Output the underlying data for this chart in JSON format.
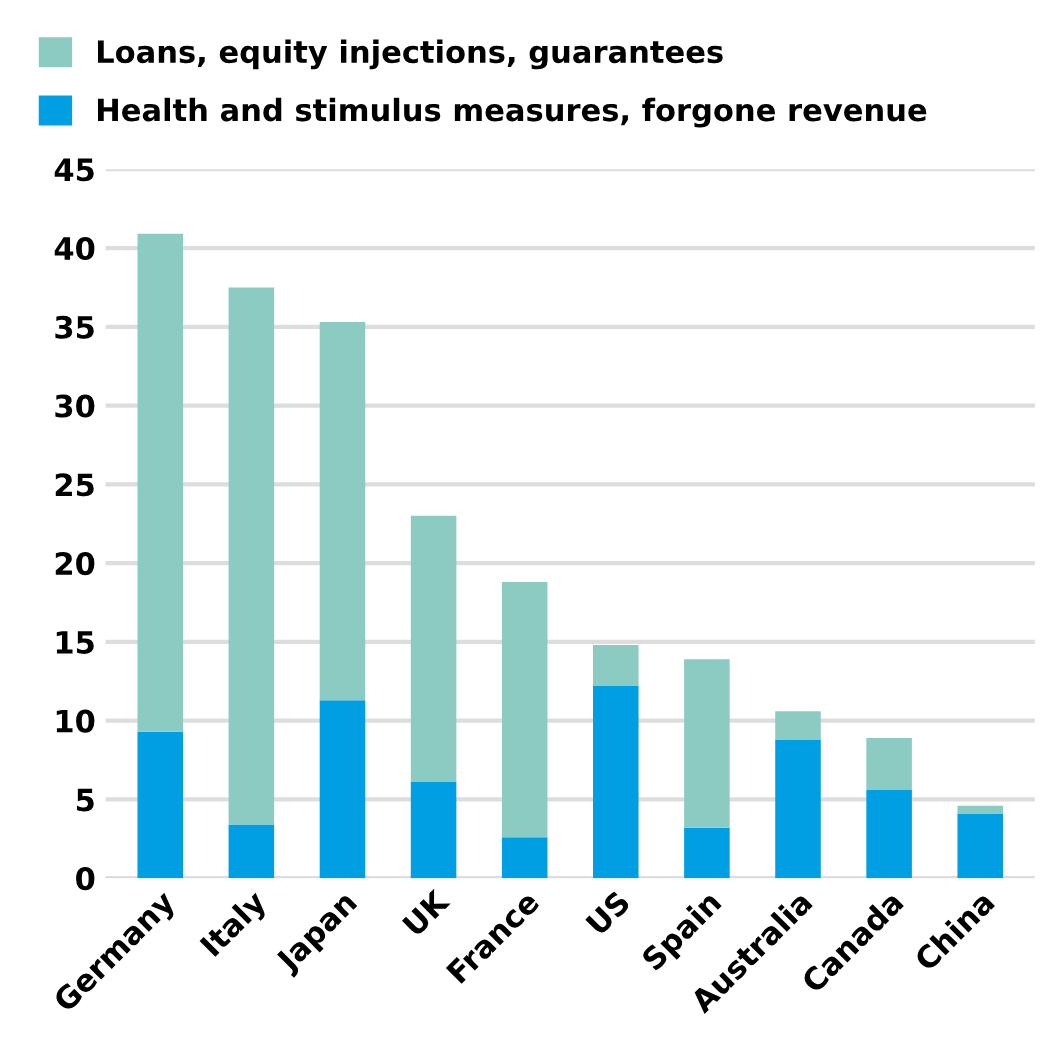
{
  "chart_data": {
    "type": "bar",
    "stacked": true,
    "categories": [
      "Germany",
      "Italy",
      "Japan",
      "UK",
      "France",
      "US",
      "Spain",
      "Australia",
      "Canada",
      "China"
    ],
    "series": [
      {
        "name": "Health and stimulus measures, forgone revenue",
        "color": "#009fe3",
        "values": [
          9.3,
          3.4,
          11.3,
          6.1,
          2.6,
          12.2,
          3.2,
          8.8,
          5.6,
          4.1
        ]
      },
      {
        "name": "Loans, equity injections, guarantees",
        "color": "#8ccbc1",
        "values": [
          31.6,
          34.1,
          24.0,
          16.9,
          16.2,
          2.6,
          10.7,
          1.8,
          3.3,
          0.5
        ]
      }
    ],
    "ylim": [
      0,
      45
    ],
    "yticks": [
      0,
      5,
      10,
      15,
      20,
      25,
      30,
      35,
      40,
      45
    ],
    "grid": "y",
    "legend": "top left"
  }
}
